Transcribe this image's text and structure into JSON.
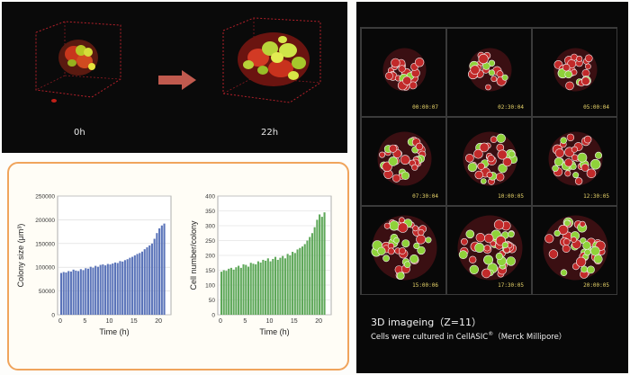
{
  "timelapse": {
    "label_start": "0h",
    "label_end": "22h"
  },
  "chart_data": [
    {
      "type": "bar",
      "ylabel": "Colony size (μm³)",
      "xlabel": "Time (h)",
      "ylim": [
        0,
        250000
      ],
      "yticks": [
        "250000",
        "200000",
        "150000",
        "100000",
        "50000",
        "0"
      ],
      "xticks": [
        "0",
        "5",
        "10",
        "15",
        "20"
      ],
      "xlim": [
        0,
        22
      ],
      "grid": true,
      "color": "#5b74b9",
      "x": [
        0,
        0.5,
        1,
        1.5,
        2,
        2.5,
        3,
        3.5,
        4,
        4.5,
        5,
        5.5,
        6,
        6.5,
        7,
        7.5,
        8,
        8.5,
        9,
        9.5,
        10,
        10.5,
        11,
        11.5,
        12,
        12.5,
        13,
        13.5,
        14,
        14.5,
        15,
        15.5,
        16,
        16.5,
        17,
        17.5,
        18,
        18.5,
        19,
        19.5,
        20,
        20.5,
        21
      ],
      "values": [
        88000,
        90000,
        89000,
        92000,
        91000,
        95000,
        93000,
        92000,
        96000,
        94000,
        98000,
        97000,
        101000,
        99000,
        103000,
        101000,
        105000,
        106000,
        104000,
        107000,
        106000,
        108000,
        110000,
        109000,
        113000,
        112000,
        115000,
        117000,
        120000,
        122000,
        125000,
        128000,
        130000,
        133000,
        138000,
        142000,
        146000,
        150000,
        160000,
        172000,
        182000,
        188000,
        192000
      ]
    },
    {
      "type": "bar",
      "ylabel": "Cell number/colony",
      "xlabel": "Time (h)",
      "ylim": [
        0,
        400
      ],
      "yticks": [
        "400",
        "350",
        "300",
        "250",
        "200",
        "150",
        "100",
        "50",
        "0"
      ],
      "xticks": [
        "0",
        "5",
        "10",
        "15",
        "20"
      ],
      "xlim": [
        0,
        22
      ],
      "grid": true,
      "color": "#5fa85a",
      "x": [
        0,
        0.5,
        1,
        1.5,
        2,
        2.5,
        3,
        3.5,
        4,
        4.5,
        5,
        5.5,
        6,
        6.5,
        7,
        7.5,
        8,
        8.5,
        9,
        9.5,
        10,
        10.5,
        11,
        11.5,
        12,
        12.5,
        13,
        13.5,
        14,
        14.5,
        15,
        15.5,
        16,
        16.5,
        17,
        17.5,
        18,
        18.5,
        19,
        19.5,
        20,
        20.5,
        21
      ],
      "values": [
        145,
        150,
        148,
        155,
        158,
        152,
        160,
        165,
        158,
        170,
        168,
        162,
        175,
        172,
        170,
        180,
        176,
        185,
        182,
        190,
        180,
        188,
        195,
        185,
        192,
        198,
        190,
        205,
        200,
        212,
        208,
        220,
        225,
        230,
        238,
        250,
        262,
        275,
        295,
        320,
        338,
        330,
        345
      ]
    }
  ],
  "imaging": {
    "timestamps": [
      "00:00:07",
      "02:30:04",
      "05:00:04",
      "07:30:04",
      "10:00:05",
      "12:30:05",
      "15:00:06",
      "17:30:05",
      "20:00:05"
    ],
    "caption_title": "3D imageing（Z=11）",
    "caption_line_main": "Cells were cultured in CellASIC",
    "caption_line_reg": "®",
    "caption_line_tail": "（Merck Millipore）"
  }
}
